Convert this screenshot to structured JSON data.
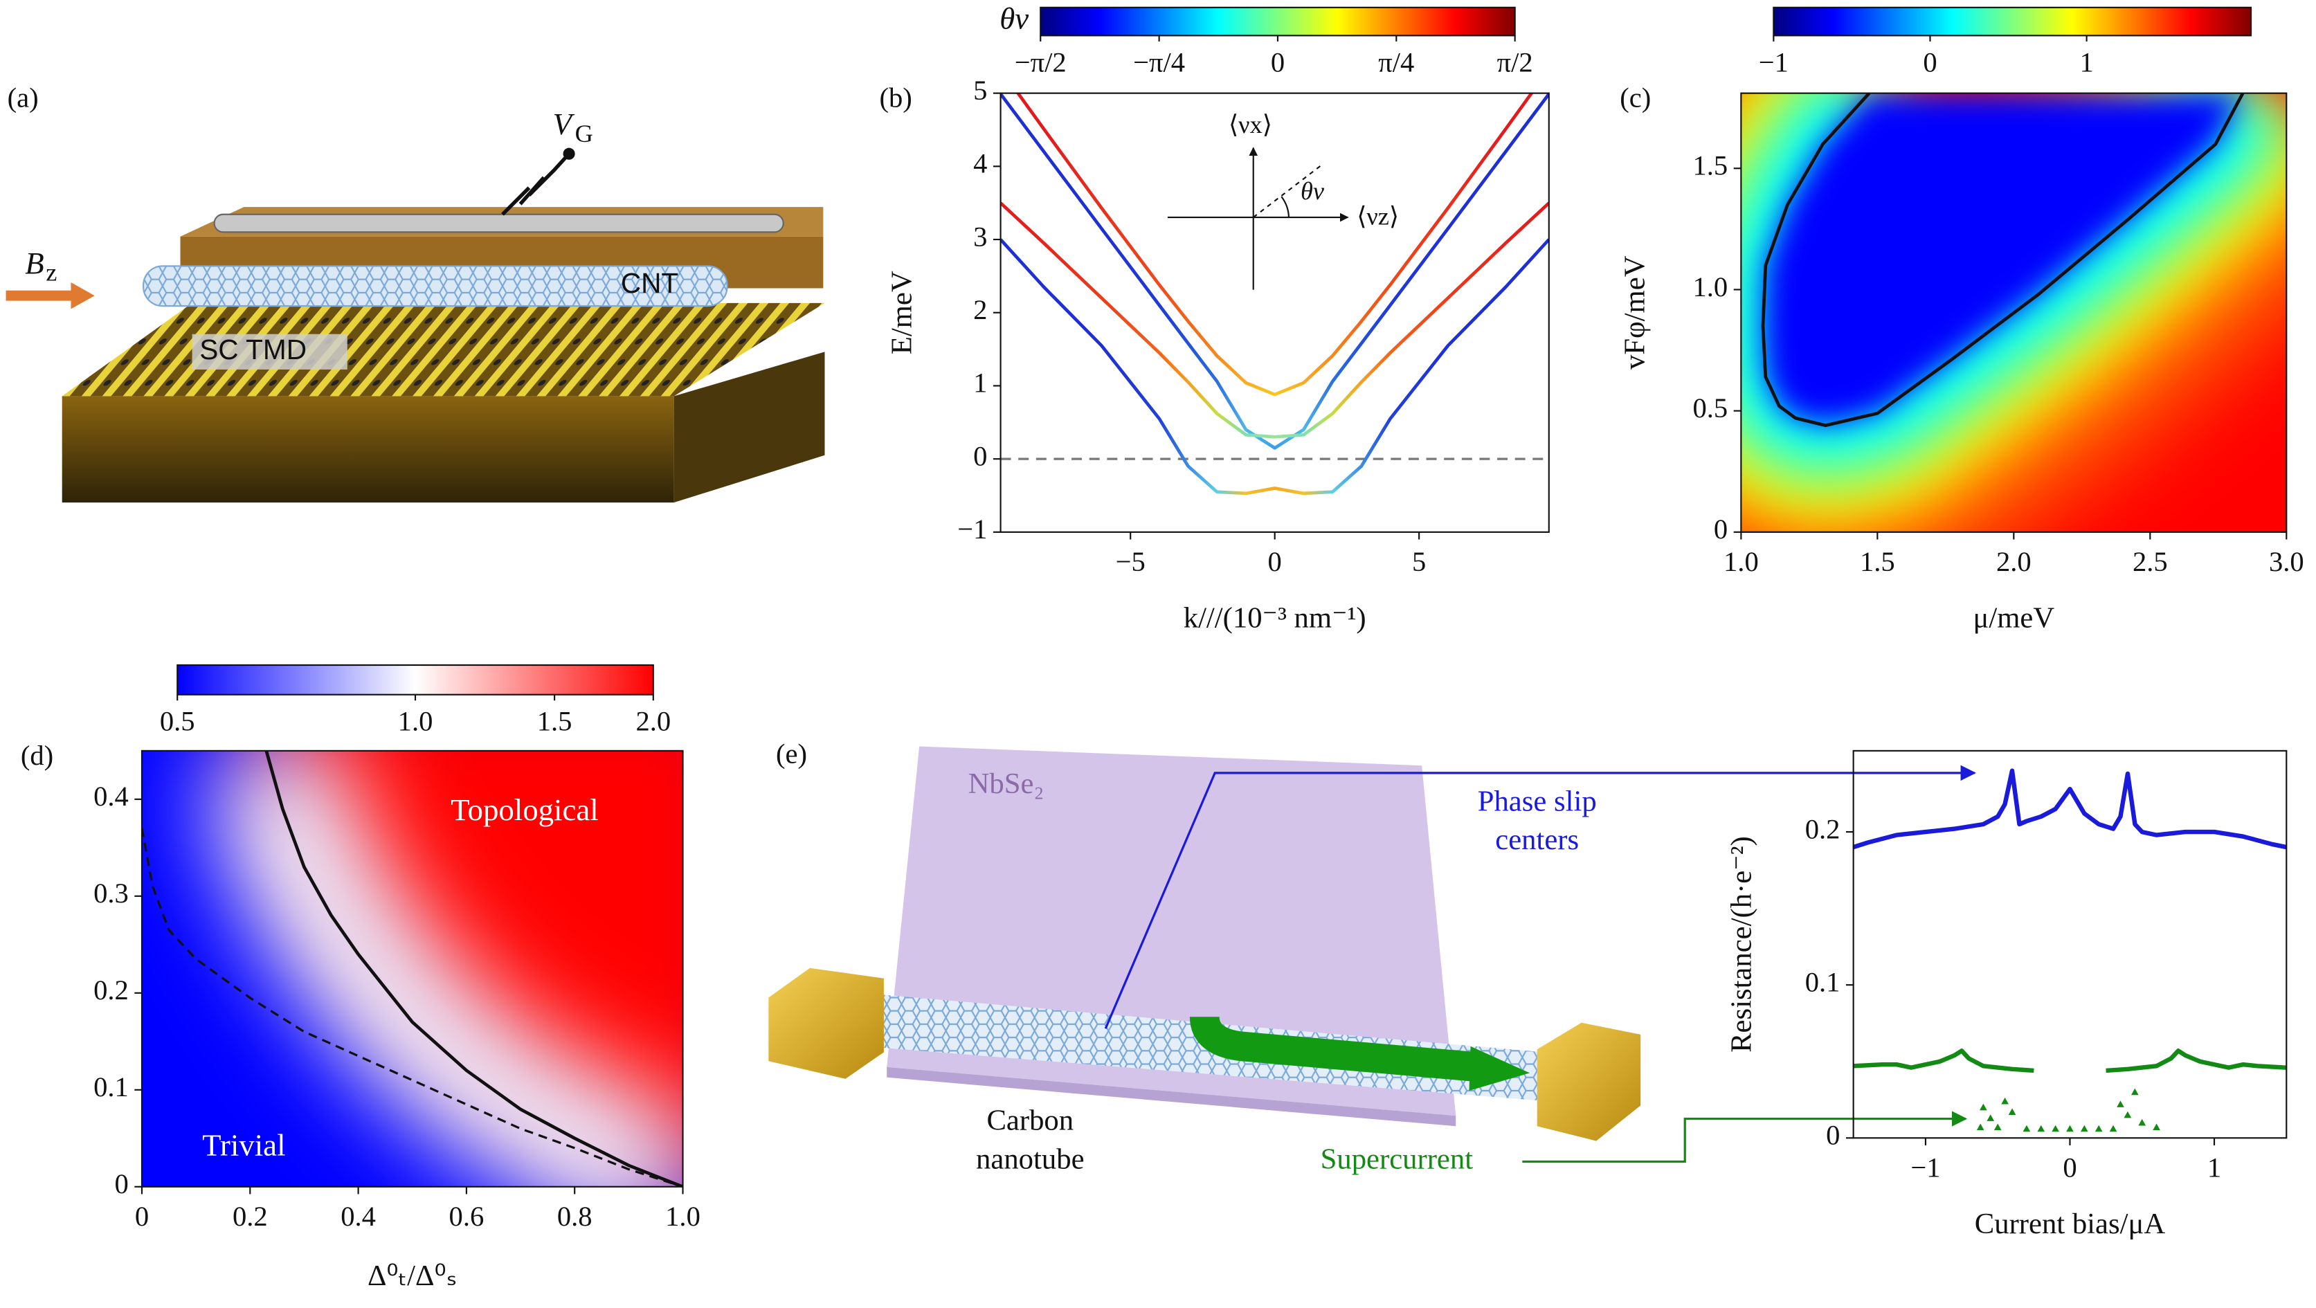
{
  "chart_data": [
    {
      "type": "line",
      "panel_label": "(b)",
      "xlabel": "k///(10⁻³ nm⁻¹)",
      "ylabel": "E/meV",
      "xlim": [
        -9.5,
        9.5
      ],
      "ylim": [
        -1,
        5
      ],
      "xticks": [
        {
          "value": -5,
          "label": "−5"
        },
        0,
        5
      ],
      "yticks": [
        {
          "value": -1,
          "label": "−1"
        },
        0,
        1,
        2,
        3,
        4,
        5
      ],
      "x": [
        -9.5,
        -8,
        -6,
        -4,
        -3,
        -2,
        -1,
        0,
        1,
        2,
        3,
        4,
        6,
        8,
        9.5
      ],
      "series": [
        {
          "values": [
            5.33,
            4.51,
            3.43,
            2.38,
            1.88,
            1.41,
            1.04,
            0.88,
            1.04,
            1.41,
            1.88,
            2.38,
            3.43,
            4.51,
            5.33
          ],
          "colors": [
            "#e31a1c",
            "#e31a1c",
            "#e8301c",
            "#ef4a1a",
            "#f26419",
            "#f58a1c",
            "#f8ac22",
            "#f6c820",
            "#f8ac22",
            "#f58a1c",
            "#f26419",
            "#ef4a1a",
            "#e8301c",
            "#e31a1c",
            "#e31a1c"
          ]
        },
        {
          "values": [
            4.99,
            4.2,
            3.15,
            2.1,
            1.58,
            1.06,
            0.4,
            0.15,
            0.4,
            1.06,
            1.58,
            2.1,
            3.15,
            4.2,
            4.99
          ],
          "colors": [
            "#1f2fd6",
            "#1f2fd6",
            "#1f2fd6",
            "#1f3ad8",
            "#2250dc",
            "#2a6fe2",
            "#4fb7ea",
            "#39a0e8",
            "#4fb7ea",
            "#2a6fe2",
            "#2250dc",
            "#1f3ad8",
            "#1f2fd6",
            "#1f2fd6",
            "#1f2fd6"
          ]
        },
        {
          "values": [
            3.5,
            2.95,
            2.2,
            1.45,
            1.05,
            0.62,
            0.33,
            0.3,
            0.33,
            0.62,
            1.05,
            1.45,
            2.2,
            2.95,
            3.5
          ],
          "colors": [
            "#e31a1c",
            "#e6231c",
            "#ec3b1b",
            "#f26419",
            "#f6a020",
            "#c8dc40",
            "#7ee0b0",
            "#9de39a",
            "#7ee0b0",
            "#c8dc40",
            "#f6a020",
            "#f26419",
            "#ec3b1b",
            "#e6231c",
            "#e31a1c"
          ]
        },
        {
          "values": [
            3.0,
            2.35,
            1.55,
            0.55,
            -0.1,
            -0.45,
            -0.47,
            -0.4,
            -0.47,
            -0.45,
            -0.1,
            0.55,
            1.55,
            2.35,
            3.0
          ],
          "colors": [
            "#1f2fd6",
            "#1f2fd6",
            "#1f2fd6",
            "#2040da",
            "#3a8be6",
            "#5fd0e0",
            "#f2c230",
            "#f5a623",
            "#f2c230",
            "#5fd0e0",
            "#3a8be6",
            "#2040da",
            "#1f2fd6",
            "#1f2fd6",
            "#1f2fd6"
          ]
        }
      ],
      "hline": 0,
      "inset": {
        "y_label": "⟨νx⟩",
        "x_label": "⟨νz⟩",
        "angle_label": "θν"
      },
      "colorbar": {
        "label": "θν",
        "lim": [
          -1.5708,
          1.5708
        ],
        "colors": [
          "#00007f",
          "#0000ff",
          "#007fff",
          "#00ffff",
          "#7fff7f",
          "#ffff00",
          "#ff7f00",
          "#ff0000",
          "#7f0000"
        ],
        "ticks": [
          {
            "value": -1.5708,
            "label": "−π/2"
          },
          {
            "value": -0.7854,
            "label": "−π/4"
          },
          0,
          {
            "value": 0.7854,
            "label": "π/4"
          },
          {
            "value": 1.5708,
            "label": "π/2"
          }
        ]
      }
    },
    {
      "type": "heatmap",
      "panel_label": "(c)",
      "xlabel": "μ/meV",
      "ylabel": "vFφ/meV",
      "xlim": [
        1,
        3
      ],
      "ylim": [
        0,
        1.81
      ],
      "xticks": [
        {
          "value": 1,
          "label": "1.0"
        },
        1.5,
        {
          "value": 2,
          "label": "2.0"
        },
        2.5,
        {
          "value": 3,
          "label": "3.0"
        }
      ],
      "yticks": [
        0,
        0.5,
        {
          "value": 1,
          "label": "1.0"
        },
        1.5
      ],
      "contours": [
        {
          "style": "solid",
          "x": [
            1.47,
            1.3,
            1.17,
            1.09,
            1.08,
            1.09,
            1.14,
            1.2,
            1.31,
            1.5,
            1.77,
            2.09,
            2.42,
            2.74,
            2.84
          ],
          "y": [
            1.81,
            1.6,
            1.35,
            1.1,
            0.85,
            0.64,
            0.52,
            0.47,
            0.44,
            0.49,
            0.71,
            0.98,
            1.29,
            1.6,
            1.81
          ]
        }
      ],
      "colorbar": {
        "lim": [
          -1,
          2.05
        ],
        "colors": [
          "#00007f",
          "#0000ff",
          "#007fff",
          "#00ffff",
          "#7fff7f",
          "#ffff00",
          "#ff7f00",
          "#ff0000",
          "#7f0000"
        ],
        "ticks": [
          {
            "value": -1,
            "label": "−1"
          },
          0,
          1
        ]
      }
    },
    {
      "type": "heatmap",
      "panel_label": "(d)",
      "xlabel": "Δ⁰ₜ/Δ⁰ₛ",
      "xlim": [
        0,
        1
      ],
      "ylim": [
        0,
        0.45
      ],
      "xticks": [
        0,
        0.2,
        0.4,
        0.6,
        0.8,
        {
          "value": 1,
          "label": "1.0"
        }
      ],
      "yticks": [
        0,
        0.1,
        0.2,
        0.3,
        0.4
      ],
      "contours": [
        {
          "style": "solid",
          "x": [
            0.23,
            0.26,
            0.3,
            0.35,
            0.4,
            0.5,
            0.6,
            0.7,
            0.8,
            0.9,
            1.0
          ],
          "y": [
            0.45,
            0.39,
            0.33,
            0.28,
            0.24,
            0.17,
            0.12,
            0.08,
            0.05,
            0.022,
            0
          ]
        },
        {
          "style": "dashed",
          "x": [
            0,
            0.02,
            0.05,
            0.1,
            0.2,
            0.3,
            0.4,
            0.5,
            0.6,
            0.7,
            0.8,
            0.9,
            1.0
          ],
          "y": [
            0.37,
            0.31,
            0.265,
            0.235,
            0.195,
            0.16,
            0.135,
            0.11,
            0.085,
            0.06,
            0.04,
            0.018,
            0
          ]
        }
      ],
      "annotations": [
        "Topological",
        "Trivial"
      ],
      "colorbar": {
        "log": true,
        "lim": [
          0.5,
          2.0
        ],
        "colors": [
          "#0000ff",
          "#ffffff",
          "#ff0000"
        ],
        "ticks": [
          0.5,
          {
            "value": 1,
            "label": "1.0"
          },
          1.5,
          {
            "value": 2,
            "label": "2.0"
          }
        ]
      }
    },
    {
      "type": "line",
      "xlabel": "Current bias/μA",
      "ylabel": "Resistance/(h·e⁻²)",
      "xlim": [
        -1.5,
        1.5
      ],
      "ylim": [
        0,
        0.253
      ],
      "xticks": [
        {
          "value": -1,
          "label": "−1"
        },
        0,
        1
      ],
      "yticks": [
        0,
        0.1,
        0.2
      ],
      "series": [
        {
          "color": "#1a1adb",
          "x": [
            -1.5,
            -1.4,
            -1.2,
            -1.0,
            -0.8,
            -0.6,
            -0.5,
            -0.45,
            -0.4,
            -0.35,
            -0.3,
            -0.2,
            -0.1,
            0,
            0.1,
            0.2,
            0.3,
            0.35,
            0.4,
            0.45,
            0.5,
            0.6,
            0.8,
            1.0,
            1.2,
            1.4,
            1.5
          ],
          "values": [
            0.19,
            0.193,
            0.198,
            0.2,
            0.202,
            0.205,
            0.21,
            0.218,
            0.24,
            0.205,
            0.207,
            0.21,
            0.215,
            0.228,
            0.212,
            0.205,
            0.202,
            0.21,
            0.238,
            0.205,
            0.2,
            0.198,
            0.2,
            0.2,
            0.197,
            0.192,
            0.19
          ]
        },
        {
          "color": "#138a13",
          "x": [
            -1.5,
            -1.3,
            -1.2,
            -1.1,
            -0.9,
            -0.8,
            -0.75,
            -0.7,
            -0.6,
            -0.4,
            -0.25,
            -0.2,
            0.25,
            0.4,
            0.6,
            0.7,
            0.75,
            0.8,
            0.9,
            1.1,
            1.2,
            1.3,
            1.5
          ],
          "values": [
            0.047,
            0.048,
            0.048,
            0.046,
            0.05,
            0.054,
            0.057,
            0.052,
            0.047,
            0.045,
            0.044,
            null,
            0.044,
            0.045,
            0.047,
            0.052,
            0.057,
            0.054,
            0.05,
            0.046,
            0.048,
            0.047,
            0.046
          ]
        },
        {
          "color": "#138a13",
          "marker": "triangle",
          "x": [
            -0.62,
            -0.6,
            -0.55,
            -0.5,
            -0.45,
            -0.4,
            -0.3,
            -0.2,
            -0.1,
            0,
            0.1,
            0.2,
            0.3,
            0.35,
            0.4,
            0.45,
            0.5,
            0.6
          ],
          "values": [
            0.007,
            0.02,
            0.013,
            0.007,
            0.024,
            0.017,
            0.006,
            0.006,
            0.006,
            0.006,
            0.006,
            0.006,
            0.006,
            0.022,
            0.015,
            0.03,
            0.01,
            0.007
          ]
        }
      ]
    }
  ],
  "illustrations": {
    "a": {
      "panel_label": "(a)",
      "gate": {
        "main": "V",
        "sub": "G"
      },
      "field": {
        "main": "B",
        "sub": "z"
      },
      "tube": "CNT",
      "substrate": "SC TMD"
    },
    "e": {
      "panel_label": "(e)",
      "sheet": "NbSe₂",
      "phase_slip": [
        "Phase slip",
        "centers"
      ],
      "tube": [
        "Carbon",
        "nanotube"
      ],
      "current": "Supercurrent"
    }
  }
}
